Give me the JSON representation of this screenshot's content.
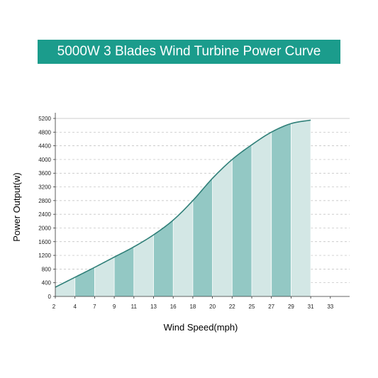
{
  "colors": {
    "banner": "#1b9c8c",
    "curve": "#2f7f78",
    "stripe_dark": "#93c8c4",
    "stripe_light": "#d3e7e5",
    "grid": "#bbbbbb"
  },
  "chart_data": {
    "type": "area",
    "title": "5000W 3 Blades Wind Turbine Power Curve",
    "xlabel": "Wind Speed(mph)",
    "ylabel": "Power Output(w)",
    "x_ticks": [
      "2",
      "4",
      "7",
      "9",
      "11",
      "13",
      "16",
      "18",
      "20",
      "22",
      "25",
      "27",
      "29",
      "31",
      "33"
    ],
    "y_ticks": [
      0,
      400,
      800,
      1200,
      1600,
      2000,
      2400,
      2800,
      3200,
      3600,
      4000,
      4400,
      4800,
      5200
    ],
    "ylim": [
      0,
      5200
    ],
    "grid": "horizontal dashed",
    "series": [
      {
        "x": [
          "2",
          "4",
          "7",
          "9",
          "11",
          "13",
          "16",
          "18",
          "20",
          "22",
          "25",
          "27",
          "29",
          "31"
        ],
        "values": [
          270,
          560,
          850,
          1150,
          1450,
          1800,
          2230,
          2800,
          3450,
          4000,
          4430,
          4800,
          5050,
          5150
        ]
      }
    ]
  }
}
